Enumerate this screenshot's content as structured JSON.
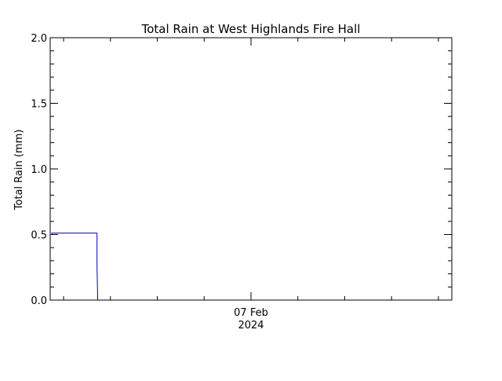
{
  "chart_data": {
    "type": "line",
    "title": "Total Rain at West Highlands Fire Hall",
    "xlabel": "",
    "ylabel": "Total Rain (mm)",
    "ylim": [
      0,
      2.0
    ],
    "yticks": [
      "0.0",
      "0.5",
      "1.0",
      "1.5",
      "2.0"
    ],
    "xtick": {
      "label": "07 Feb",
      "sublabel": "2024"
    },
    "grid": false,
    "series": [
      {
        "color": "#0000aa",
        "x_hours": [
          0,
          0.125,
          0.125,
          3.5,
          3.5,
          3.55
        ],
        "values": [
          0.5,
          0.5,
          0.51,
          0.51,
          0.25,
          0.0
        ]
      }
    ],
    "x_range_hours": [
      0,
      30
    ],
    "x_tick_hour": 15
  }
}
